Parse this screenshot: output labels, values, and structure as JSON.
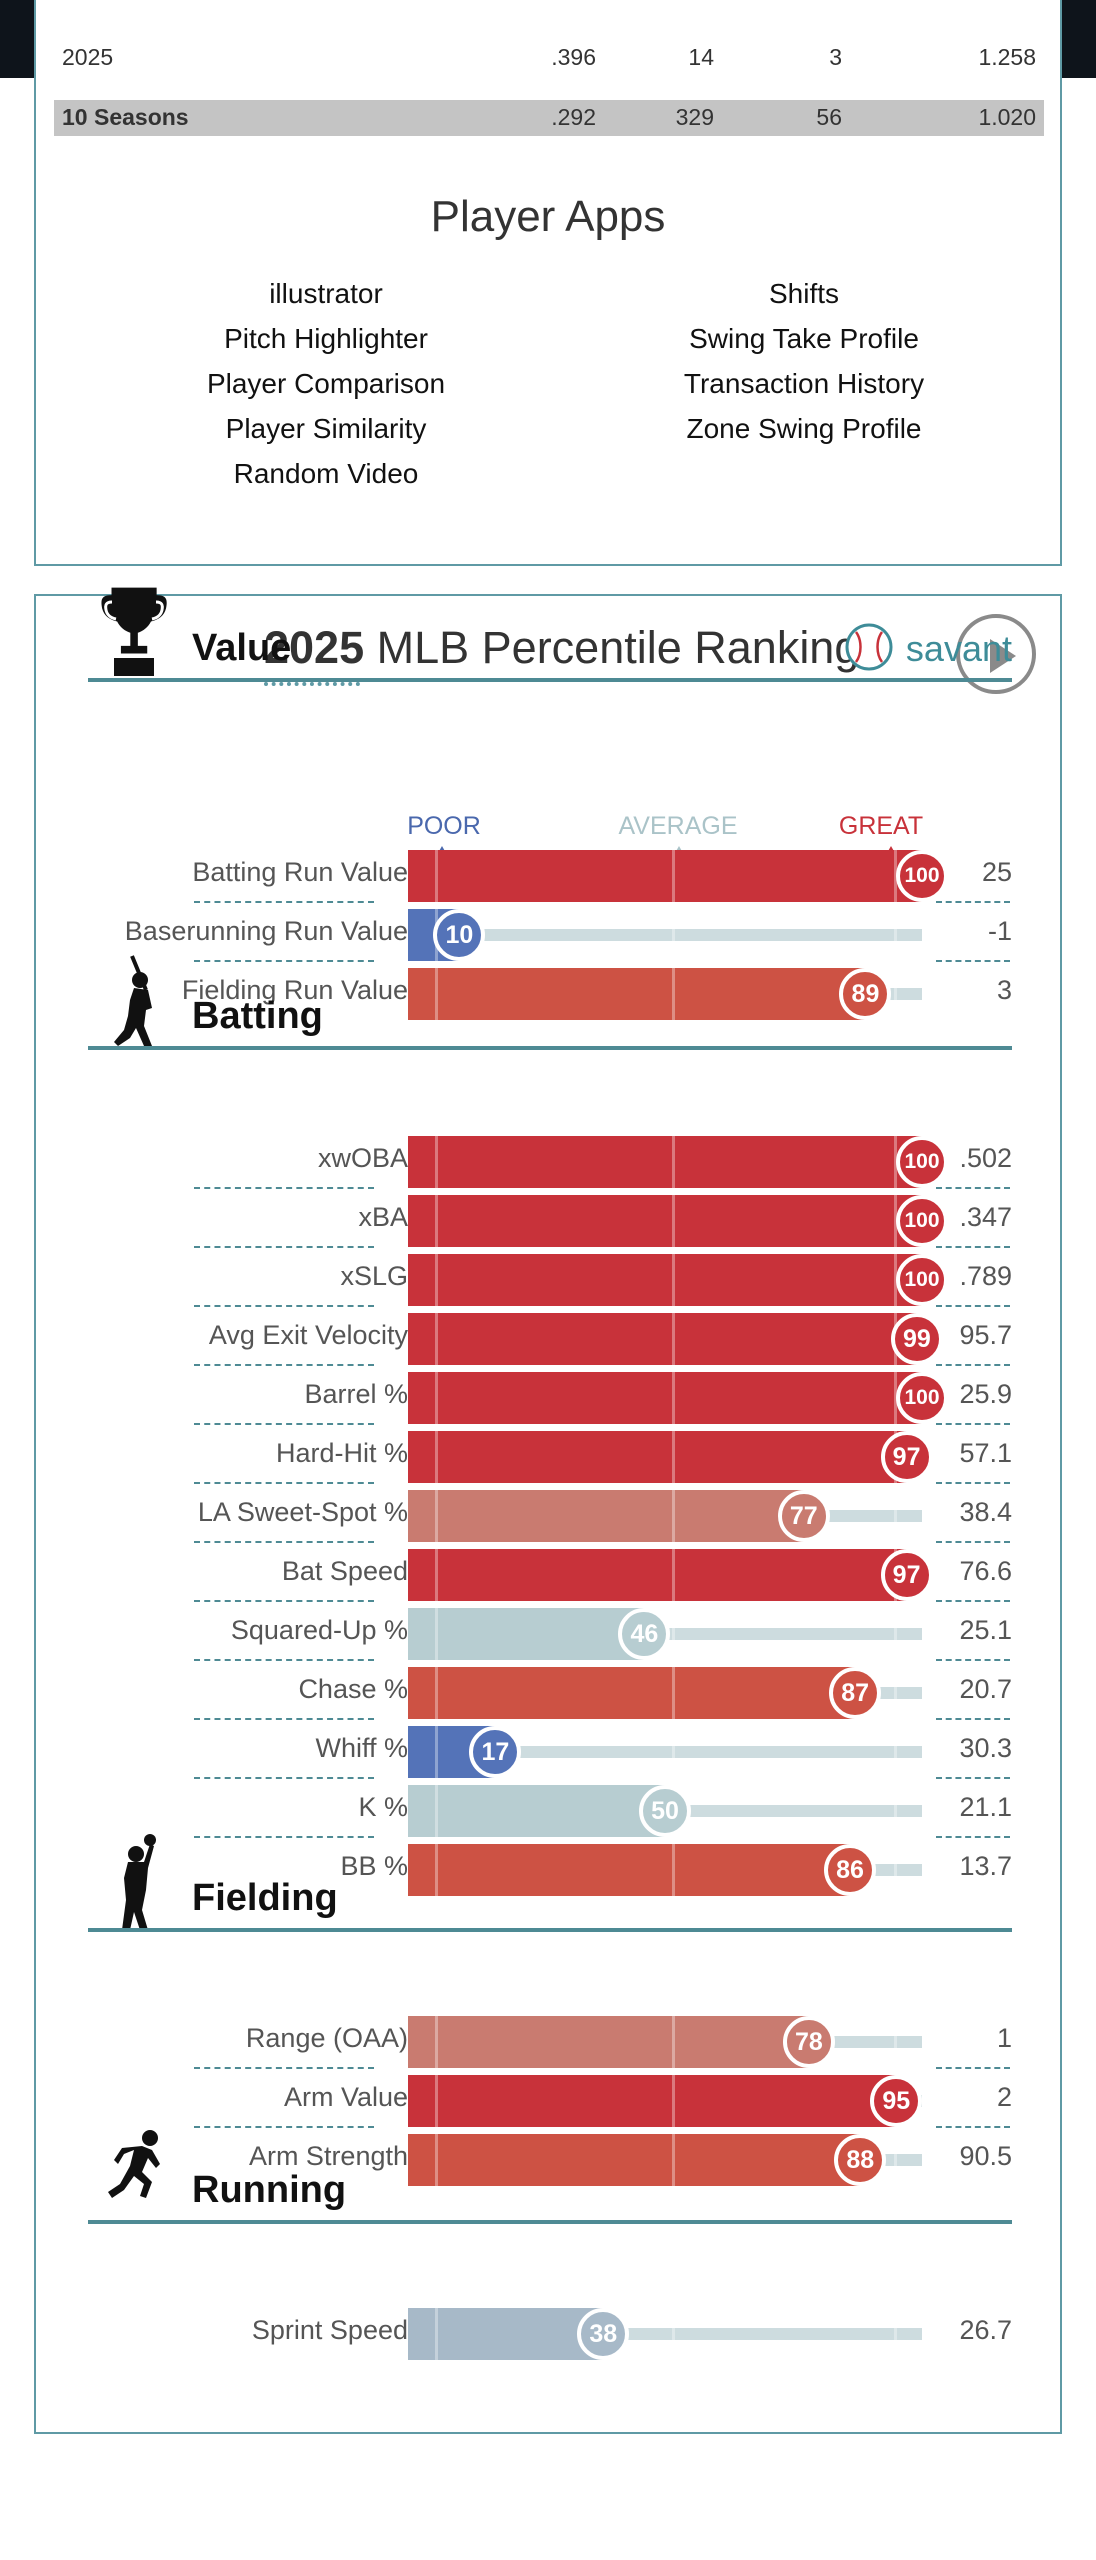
{
  "stats": {
    "row_2025": {
      "season": "2025",
      "a": ".396",
      "b": "14",
      "c": "3",
      "d": "1.258"
    },
    "row_total": {
      "season": "10 Seasons",
      "a": ".292",
      "b": "329",
      "c": "56",
      "d": "1.020"
    }
  },
  "player_apps": {
    "title": "Player Apps",
    "left": [
      "illustrator",
      "Pitch Highlighter",
      "Player Comparison",
      "Player Similarity",
      "Random Video"
    ],
    "right": [
      "Shifts",
      "Swing Take Profile",
      "Transaction History",
      "Zone Swing Profile"
    ]
  },
  "percentile": {
    "year": "2025",
    "title": "MLB Percentile Rankings",
    "brand": "savant",
    "scale": {
      "poor": "POOR",
      "average": "AVERAGE",
      "great": "GREAT"
    },
    "colors": {
      "great": "#c8323a",
      "poor": "#5473b8",
      "average": "#b7cdd1",
      "border": "#5f9aa5"
    },
    "sections": [
      {
        "title": "Value",
        "icon": "trophy-icon",
        "metrics": [
          {
            "label": "Batting Run Value",
            "pct": 100,
            "value": "25"
          },
          {
            "label": "Baserunning Run Value",
            "pct": 10,
            "value": "-1"
          },
          {
            "label": "Fielding Run Value",
            "pct": 89,
            "value": "3"
          }
        ]
      },
      {
        "title": "Batting",
        "icon": "batter-icon",
        "metrics": [
          {
            "label": "xwOBA",
            "pct": 100,
            "value": ".502"
          },
          {
            "label": "xBA",
            "pct": 100,
            "value": ".347"
          },
          {
            "label": "xSLG",
            "pct": 100,
            "value": ".789"
          },
          {
            "label": "Avg Exit Velocity",
            "pct": 99,
            "value": "95.7"
          },
          {
            "label": "Barrel %",
            "pct": 100,
            "value": "25.9"
          },
          {
            "label": "Hard-Hit %",
            "pct": 97,
            "value": "57.1"
          },
          {
            "label": "LA Sweet-Spot %",
            "pct": 77,
            "value": "38.4"
          },
          {
            "label": "Bat Speed",
            "pct": 97,
            "value": "76.6"
          },
          {
            "label": "Squared-Up %",
            "pct": 46,
            "value": "25.1"
          },
          {
            "label": "Chase %",
            "pct": 87,
            "value": "20.7"
          },
          {
            "label": "Whiff %",
            "pct": 17,
            "value": "30.3"
          },
          {
            "label": "K %",
            "pct": 50,
            "value": "21.1"
          },
          {
            "label": "BB %",
            "pct": 86,
            "value": "13.7"
          }
        ]
      },
      {
        "title": "Fielding",
        "icon": "fielder-icon",
        "metrics": [
          {
            "label": "Range (OAA)",
            "pct": 78,
            "value": "1"
          },
          {
            "label": "Arm Value",
            "pct": 95,
            "value": "2"
          },
          {
            "label": "Arm Strength",
            "pct": 88,
            "value": "90.5"
          }
        ]
      },
      {
        "title": "Running",
        "icon": "runner-icon",
        "metrics": [
          {
            "label": "Sprint Speed",
            "pct": 38,
            "value": "26.7"
          }
        ]
      }
    ]
  }
}
